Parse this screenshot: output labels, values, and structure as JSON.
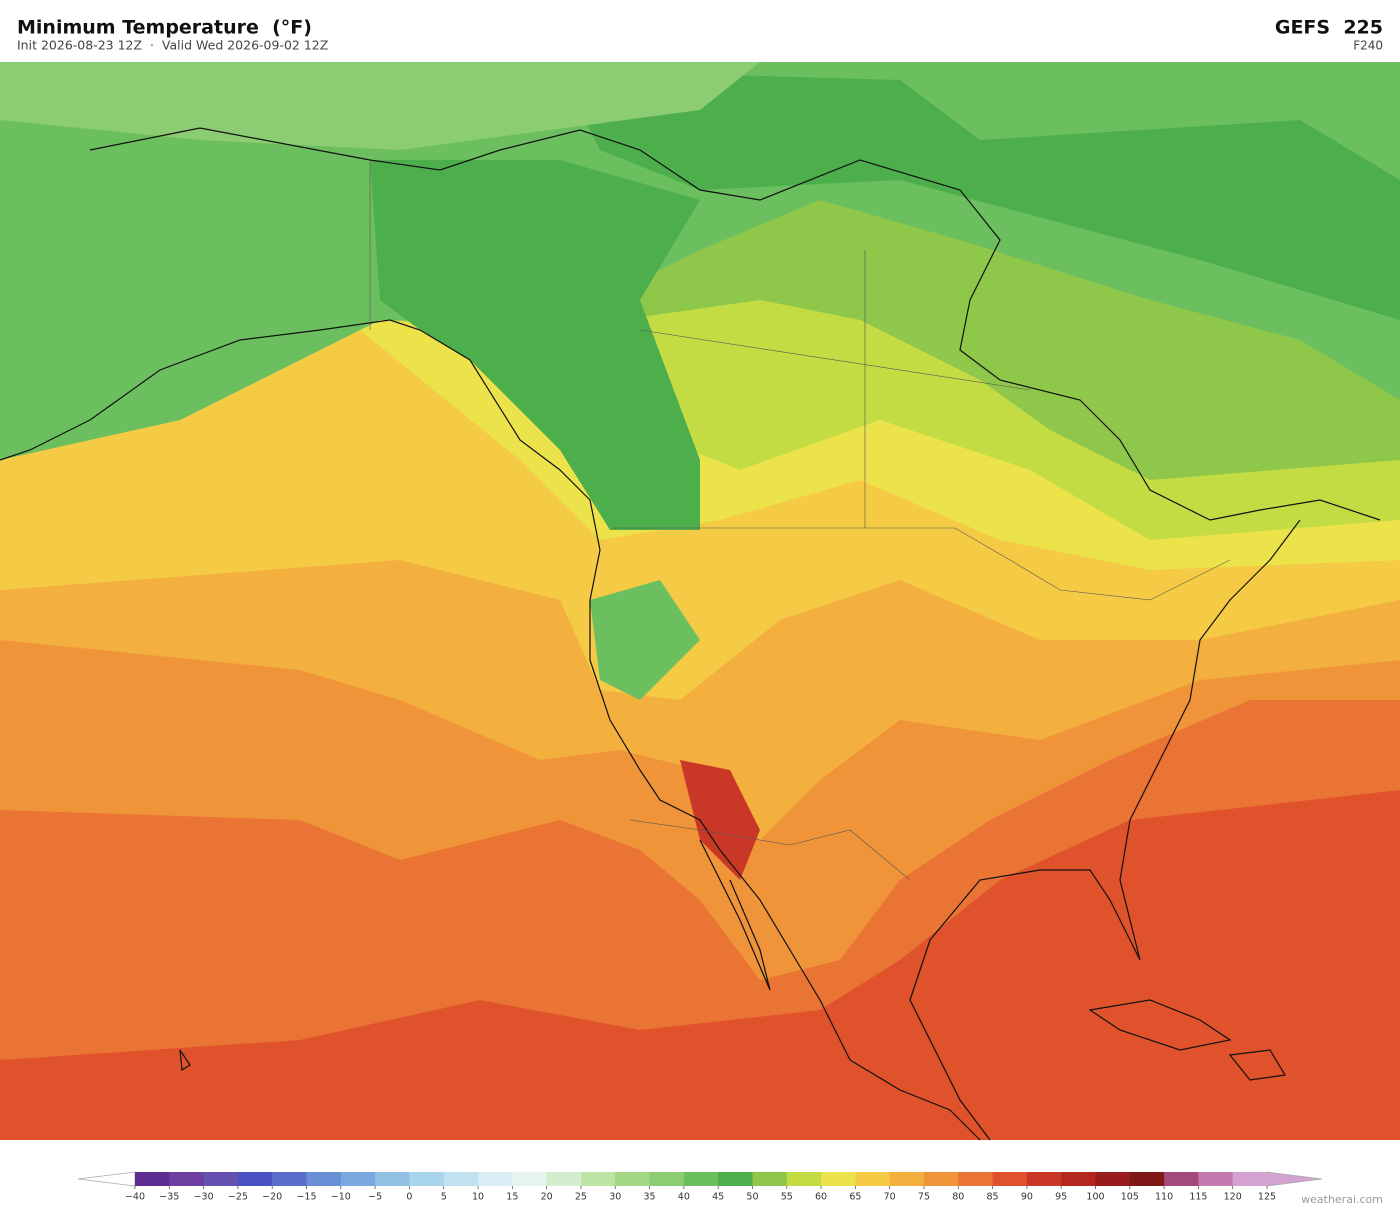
{
  "header": {
    "title": "Minimum Temperature  (°F)",
    "subtitle": "Init 2026-08-23 12Z  ·  Valid Wed 2026-09-02 12Z",
    "model": "GEFS  225",
    "forecast_hour": "F240"
  },
  "colorbar": {
    "ticks": [
      {
        "value": -40,
        "label": "−40"
      },
      {
        "value": -35,
        "label": "−35"
      },
      {
        "value": -30,
        "label": "−30"
      },
      {
        "value": -25,
        "label": "−25"
      },
      {
        "value": -20,
        "label": "−20"
      },
      {
        "value": -15,
        "label": "−15"
      },
      {
        "value": -10,
        "label": "−10"
      },
      {
        "value": -5,
        "label": "−5"
      },
      0,
      5,
      10,
      15,
      20,
      25,
      30,
      35,
      40,
      45,
      50,
      55,
      60,
      65,
      70,
      75,
      80,
      85,
      90,
      95,
      100,
      105,
      110,
      115,
      120,
      125
    ],
    "colors": [
      "#5e2d91",
      "#6d3fa0",
      "#6650b0",
      "#4b53c4",
      "#5a6dcc",
      "#6a8fd6",
      "#7aa8de",
      "#90c0e4",
      "#a8d4ec",
      "#c0e2f0",
      "#d8eef4",
      "#e6f4ee",
      "#d5edcf",
      "#bde3a5",
      "#a3d785",
      "#8ccc72",
      "#6cbf5e",
      "#4dae4c",
      "#8fc74a",
      "#c4dc44",
      "#ece34a",
      "#f5cb45",
      "#f3b03f",
      "#f0943a",
      "#ea7434",
      "#e0522c",
      "#c93826",
      "#b3271f",
      "#981c1c",
      "#801818",
      "#a24b7a",
      "#c27aaf",
      "#d4a2d0"
    ],
    "under_color": "#ffffff",
    "over_color": "#d4a2d0"
  },
  "watermark": "weatherai.com"
}
